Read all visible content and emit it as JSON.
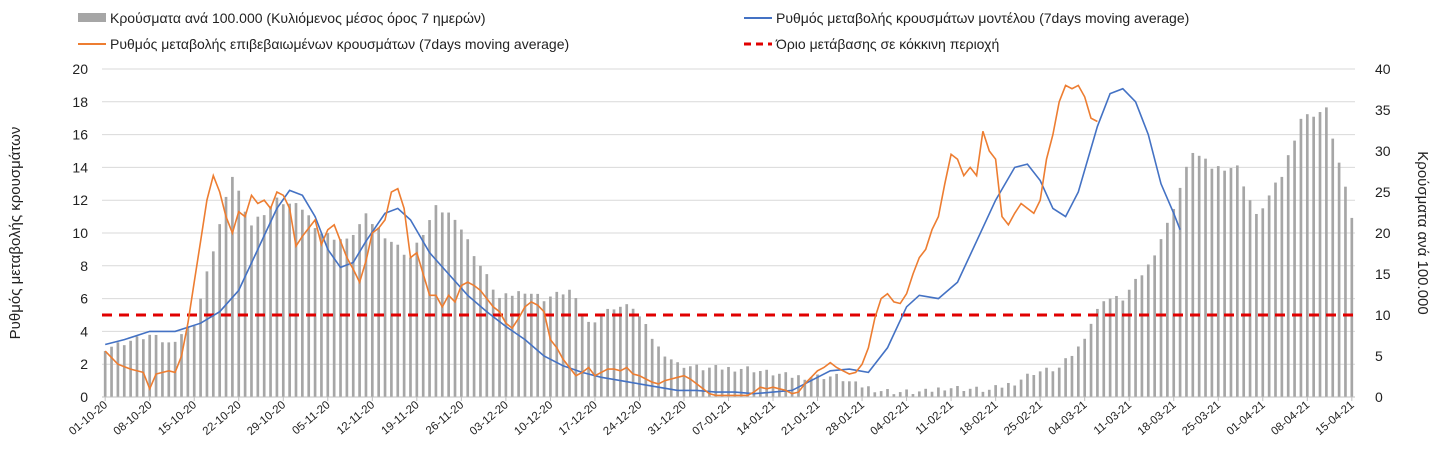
{
  "chart_data": {
    "type": "bar-line-combo",
    "legend": {
      "bars": "Κρούσματα ανά 100.000 (Κυλιόμενος μέσος όρος 7 ημερών)",
      "model": "Ρυθμός μεταβολής κρουσμάτων μοντέλου (7days moving average)",
      "confirmed": "Ρυθμός μεταβολής επιβεβαιωμένων κρουσμάτων (7days moving average)",
      "threshold": "Όριο μετάβασης σε κόκκινη περιοχή"
    },
    "ylabel_left": "Ρυθμός μεταβολής κρουσμάτων",
    "ylabel_right": "Κρούσματα ανά 100.000",
    "y_left": {
      "min": 0,
      "max": 20,
      "step": 2
    },
    "y_right": {
      "min": 0,
      "max": 40,
      "step": 5
    },
    "y_left_ticks": [
      "0",
      "2",
      "4",
      "6",
      "8",
      "10",
      "12",
      "14",
      "16",
      "18",
      "20"
    ],
    "y_right_ticks": [
      "0",
      "5",
      "10",
      "15",
      "20",
      "25",
      "30",
      "35",
      "40"
    ],
    "x_tick_labels": [
      "01-10-20",
      "08-10-20",
      "15-10-20",
      "22-10-20",
      "29-10-20",
      "05-11-20",
      "12-11-20",
      "19-11-20",
      "26-11-20",
      "03-12-20",
      "10-12-20",
      "17-12-20",
      "24-12-20",
      "31-12-20",
      "07-01-21",
      "14-01-21",
      "21-01-21",
      "28-01-21",
      "04-02-21",
      "11-02-21",
      "18-02-21",
      "25-02-21",
      "04-03-21",
      "11-03-21",
      "18-03-21",
      "25-03-21",
      "01-04-21",
      "08-04-21",
      "15-04-21"
    ],
    "day_count": 197,
    "threshold_value": 5,
    "colors": {
      "bars": "#a6a6a6",
      "model": "#4472c4",
      "confirmed": "#ed7d31",
      "threshold": "#e00000",
      "grid": "#d9d9d9"
    },
    "bars_right_axis_points": [
      [
        0,
        6
      ],
      [
        7,
        7.5
      ],
      [
        10,
        6.5
      ],
      [
        14,
        9
      ],
      [
        17,
        18
      ],
      [
        20,
        27
      ],
      [
        23,
        21
      ],
      [
        27,
        24
      ],
      [
        31,
        23
      ],
      [
        34,
        20
      ],
      [
        38,
        19
      ],
      [
        41,
        22
      ],
      [
        45,
        19
      ],
      [
        48,
        17
      ],
      [
        52,
        23
      ],
      [
        55,
        22
      ],
      [
        59,
        16
      ],
      [
        62,
        12
      ],
      [
        66,
        13
      ],
      [
        69,
        12
      ],
      [
        73,
        13
      ],
      [
        76,
        9
      ],
      [
        80,
        11
      ],
      [
        83,
        11
      ],
      [
        87,
        6
      ],
      [
        90,
        4
      ],
      [
        94,
        3.5
      ],
      [
        97,
        3.5
      ],
      [
        101,
        3.5
      ],
      [
        104,
        3
      ],
      [
        108,
        2.5
      ],
      [
        111,
        2.5
      ],
      [
        115,
        2.5
      ],
      [
        118,
        1.5
      ],
      [
        122,
        0.8
      ],
      [
        125,
        0.6
      ],
      [
        129,
        0.6
      ],
      [
        132,
        1.2
      ],
      [
        136,
        1
      ],
      [
        139,
        0.8
      ],
      [
        143,
        1.8
      ],
      [
        146,
        3
      ],
      [
        150,
        3.5
      ],
      [
        153,
        6
      ],
      [
        157,
        12
      ],
      [
        160,
        12
      ],
      [
        164,
        16
      ],
      [
        167,
        21
      ],
      [
        171,
        30
      ],
      [
        174,
        28
      ],
      [
        178,
        28
      ],
      [
        181,
        22
      ],
      [
        185,
        27
      ],
      [
        188,
        34
      ],
      [
        192,
        35
      ],
      [
        196,
        22
      ]
    ],
    "model_points": [
      [
        0,
        3.2
      ],
      [
        3,
        3.5
      ],
      [
        7,
        4
      ],
      [
        11,
        4
      ],
      [
        15,
        4.5
      ],
      [
        18,
        5.2
      ],
      [
        21,
        6.5
      ],
      [
        24,
        9
      ],
      [
        27,
        11.5
      ],
      [
        29,
        12.6
      ],
      [
        31,
        12.3
      ],
      [
        33,
        11
      ],
      [
        35,
        9
      ],
      [
        37,
        7.9
      ],
      [
        39,
        8.2
      ],
      [
        41,
        9.5
      ],
      [
        44,
        11.2
      ],
      [
        46,
        11.5
      ],
      [
        48,
        10.8
      ],
      [
        51,
        8.8
      ],
      [
        54,
        7.5
      ],
      [
        57,
        6.2
      ],
      [
        60,
        5.2
      ],
      [
        63,
        4.3
      ],
      [
        66,
        3.5
      ],
      [
        69,
        2.5
      ],
      [
        72,
        1.9
      ],
      [
        75,
        1.5
      ],
      [
        78,
        1.2
      ],
      [
        81,
        1
      ],
      [
        84,
        0.8
      ],
      [
        87,
        0.6
      ],
      [
        90,
        0.4
      ],
      [
        93,
        0.4
      ],
      [
        96,
        0.3
      ],
      [
        99,
        0.3
      ],
      [
        102,
        0.2
      ],
      [
        105,
        0.3
      ],
      [
        108,
        0.4
      ],
      [
        111,
        1
      ],
      [
        114,
        1.6
      ],
      [
        117,
        1.7
      ],
      [
        120,
        1.5
      ],
      [
        123,
        3
      ],
      [
        126,
        5.5
      ],
      [
        128,
        6.2
      ],
      [
        131,
        6
      ],
      [
        134,
        7
      ],
      [
        137,
        9.5
      ],
      [
        140,
        12
      ],
      [
        143,
        14
      ],
      [
        145,
        14.2
      ],
      [
        147,
        13.2
      ],
      [
        149,
        11.5
      ],
      [
        151,
        11
      ],
      [
        153,
        12.5
      ],
      [
        156,
        16.5
      ],
      [
        158,
        18.5
      ],
      [
        160,
        18.8
      ],
      [
        162,
        18
      ],
      [
        164,
        16
      ],
      [
        166,
        13
      ],
      [
        168,
        11.2
      ],
      [
        169,
        10.2
      ]
    ],
    "confirmed_points": [
      [
        0,
        2.8
      ],
      [
        2,
        2
      ],
      [
        4,
        1.7
      ],
      [
        6,
        1.5
      ],
      [
        7,
        0.5
      ],
      [
        8,
        1.4
      ],
      [
        10,
        1.6
      ],
      [
        11,
        1.5
      ],
      [
        12,
        2.5
      ],
      [
        13,
        4.5
      ],
      [
        14,
        7
      ],
      [
        15,
        9.5
      ],
      [
        16,
        12
      ],
      [
        17,
        13.5
      ],
      [
        18,
        12.5
      ],
      [
        19,
        11
      ],
      [
        20,
        10
      ],
      [
        21,
        11.3
      ],
      [
        22,
        11
      ],
      [
        23,
        12.3
      ],
      [
        24,
        11.8
      ],
      [
        25,
        12
      ],
      [
        26,
        11.5
      ],
      [
        27,
        12.5
      ],
      [
        28,
        12.3
      ],
      [
        29,
        11.5
      ],
      [
        30,
        9.2
      ],
      [
        31,
        9.8
      ],
      [
        32,
        10.3
      ],
      [
        33,
        10.8
      ],
      [
        34,
        9.3
      ],
      [
        35,
        10.2
      ],
      [
        36,
        10.5
      ],
      [
        37,
        9.5
      ],
      [
        38,
        8.5
      ],
      [
        39,
        7.8
      ],
      [
        40,
        7
      ],
      [
        41,
        8.3
      ],
      [
        42,
        10
      ],
      [
        43,
        10.3
      ],
      [
        44,
        10.8
      ],
      [
        45,
        12.5
      ],
      [
        46,
        12.7
      ],
      [
        47,
        11.5
      ],
      [
        48,
        8.5
      ],
      [
        49,
        8.8
      ],
      [
        50,
        7.5
      ],
      [
        51,
        6.2
      ],
      [
        52,
        6.2
      ],
      [
        53,
        5.5
      ],
      [
        54,
        6.2
      ],
      [
        55,
        5.8
      ],
      [
        56,
        6.8
      ],
      [
        57,
        7
      ],
      [
        58,
        6.8
      ],
      [
        59,
        6.5
      ],
      [
        60,
        6
      ],
      [
        61,
        5.5
      ],
      [
        62,
        5.2
      ],
      [
        63,
        4.5
      ],
      [
        64,
        4.2
      ],
      [
        65,
        4.8
      ],
      [
        66,
        5.5
      ],
      [
        67,
        5.8
      ],
      [
        68,
        5.6
      ],
      [
        69,
        5.2
      ],
      [
        70,
        3.5
      ],
      [
        71,
        3
      ],
      [
        72,
        2.3
      ],
      [
        73,
        1.8
      ],
      [
        74,
        1.3
      ],
      [
        75,
        1.5
      ],
      [
        76,
        1.8
      ],
      [
        77,
        1.3
      ],
      [
        78,
        1.5
      ],
      [
        79,
        1.7
      ],
      [
        80,
        1.7
      ],
      [
        81,
        1.6
      ],
      [
        82,
        1.8
      ],
      [
        83,
        1.4
      ],
      [
        84,
        1.3
      ],
      [
        85,
        1.1
      ],
      [
        86,
        0.9
      ],
      [
        87,
        0.8
      ],
      [
        88,
        1
      ],
      [
        89,
        1.1
      ],
      [
        90,
        1.2
      ],
      [
        91,
        1.3
      ],
      [
        92,
        1.1
      ],
      [
        93,
        0.8
      ],
      [
        94,
        0.5
      ],
      [
        95,
        0.2
      ],
      [
        96,
        0.1
      ],
      [
        97,
        0.1
      ],
      [
        98,
        0.1
      ],
      [
        99,
        0.1
      ],
      [
        100,
        0.1
      ],
      [
        101,
        0.1
      ],
      [
        102,
        0.3
      ],
      [
        103,
        0.6
      ],
      [
        104,
        0.5
      ],
      [
        105,
        0.6
      ],
      [
        106,
        0.5
      ],
      [
        107,
        0.4
      ],
      [
        108,
        0.2
      ],
      [
        109,
        0.3
      ],
      [
        110,
        0.8
      ],
      [
        111,
        1.2
      ],
      [
        112,
        1.6
      ],
      [
        113,
        1.8
      ],
      [
        114,
        2.1
      ],
      [
        115,
        1.8
      ],
      [
        116,
        1.6
      ],
      [
        117,
        1.4
      ],
      [
        118,
        1.5
      ],
      [
        119,
        2
      ],
      [
        120,
        3
      ],
      [
        121,
        4.8
      ],
      [
        122,
        6
      ],
      [
        123,
        6.3
      ],
      [
        124,
        5.8
      ],
      [
        125,
        5.7
      ],
      [
        126,
        6.3
      ],
      [
        127,
        7.5
      ],
      [
        128,
        8.5
      ],
      [
        129,
        9
      ],
      [
        130,
        10.2
      ],
      [
        131,
        11
      ],
      [
        132,
        13
      ],
      [
        133,
        14.8
      ],
      [
        134,
        14.5
      ],
      [
        135,
        13.5
      ],
      [
        136,
        14
      ],
      [
        137,
        13.5
      ],
      [
        138,
        16.2
      ],
      [
        139,
        15
      ],
      [
        140,
        14.5
      ],
      [
        141,
        11
      ],
      [
        142,
        10.5
      ],
      [
        143,
        11.2
      ],
      [
        144,
        11.8
      ],
      [
        145,
        11.5
      ],
      [
        146,
        11.2
      ],
      [
        147,
        12
      ],
      [
        148,
        14.5
      ],
      [
        149,
        16
      ],
      [
        150,
        18
      ],
      [
        151,
        19
      ],
      [
        152,
        18.8
      ],
      [
        153,
        19
      ],
      [
        154,
        18.3
      ],
      [
        155,
        17
      ],
      [
        156,
        16.8
      ]
    ]
  }
}
